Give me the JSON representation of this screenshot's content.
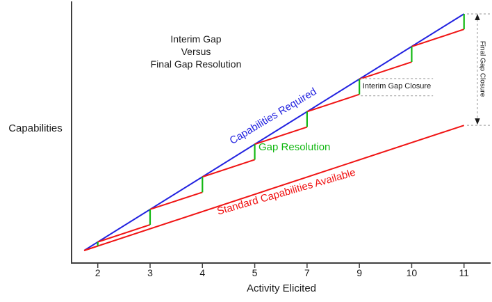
{
  "title": {
    "lines": [
      "Interim Gap",
      "Versus",
      "Final Gap Resolution"
    ]
  },
  "axes": {
    "y_label": "Capabilities",
    "x_label": "Activity Elicited",
    "x_ticks": [
      "2",
      "3",
      "4",
      "5",
      "7",
      "9",
      "10",
      "11"
    ]
  },
  "series_labels": {
    "required": "Capabilities Required",
    "gap_resolution": "Gap Resolution",
    "standard": "Standard Capabilities Available"
  },
  "annotations": {
    "interim_gap_closure": "Interim Gap Closure",
    "final_gap_closure": "Final Gap Closure"
  },
  "colors": {
    "required_blue": "#2222E0",
    "standard_red": "#F01414",
    "gap_green": "#12B812",
    "axis": "#3F3F3F",
    "text": "#1A1A1A",
    "annotation_gray": "#ABABAB"
  },
  "chart_data": {
    "type": "line",
    "title": "Interim Gap Versus Final Gap Resolution",
    "xlabel": "Activity Elicited",
    "ylabel": "Capabilities",
    "categories": [
      "2",
      "3",
      "4",
      "5",
      "7",
      "9",
      "10",
      "11"
    ],
    "x_scale_note": "tick labels are non-uniform (6 and 8 skipped) but evenly spaced",
    "units": "percent of final required capability (no y tick labels shown)",
    "origin": {
      "tick_index": -0.26,
      "value": 0
    },
    "series": [
      {
        "name": "Capabilities Required",
        "style": "straight line",
        "color": "#2222E0",
        "values": [
          3.6,
          17.4,
          31.1,
          44.9,
          58.7,
          72.4,
          86.2,
          100
        ]
      },
      {
        "name": "Standard Capabilities Available",
        "style": "straight line",
        "color": "#F01414",
        "values": [
          1.9,
          9.2,
          16.5,
          23.8,
          31.1,
          38.4,
          45.6,
          52.9
        ]
      },
      {
        "name": "Gap Resolution sawtooth (value just before each closure)",
        "style": "sawtooth, red segments",
        "color": "#F01414",
        "values": [
          1.9,
          10.9,
          24.6,
          38.4,
          52.2,
          66.0,
          79.7,
          93.5
        ]
      },
      {
        "name": "Interim gap closures (green verticals close sawtooth up to Capabilities Required)",
        "style": "vertical jumps",
        "color": "#12B812",
        "values": [
          3.6,
          17.4,
          31.1,
          44.9,
          58.7,
          72.4,
          86.2,
          100
        ]
      }
    ],
    "annotations": [
      {
        "text": "Interim Gap Closure",
        "at_category": "9",
        "between_values": [
          66.0,
          72.4
        ]
      },
      {
        "text": "Final Gap Closure",
        "at_right_edge": true,
        "between_values": [
          52.9,
          100
        ]
      }
    ],
    "legend": "none",
    "grid": false
  }
}
